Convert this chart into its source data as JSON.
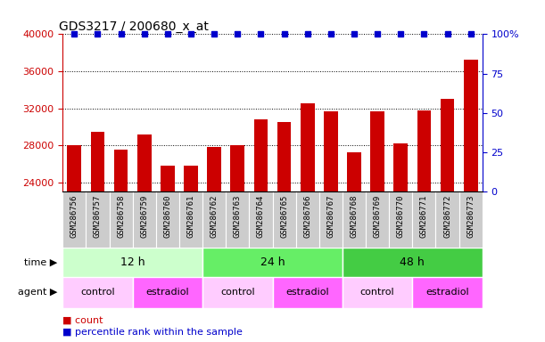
{
  "title": "GDS3217 / 200680_x_at",
  "samples": [
    "GSM286756",
    "GSM286757",
    "GSM286758",
    "GSM286759",
    "GSM286760",
    "GSM286761",
    "GSM286762",
    "GSM286763",
    "GSM286764",
    "GSM286765",
    "GSM286766",
    "GSM286767",
    "GSM286768",
    "GSM286769",
    "GSM286770",
    "GSM286771",
    "GSM286772",
    "GSM286773"
  ],
  "counts": [
    28000,
    29500,
    27500,
    29200,
    25800,
    25800,
    27800,
    28000,
    30800,
    30500,
    32500,
    31700,
    27200,
    31700,
    28200,
    31800,
    33000,
    37200
  ],
  "percentile_ranks": [
    100,
    100,
    100,
    100,
    100,
    100,
    100,
    100,
    100,
    100,
    100,
    100,
    100,
    100,
    100,
    100,
    100,
    100
  ],
  "bar_color": "#cc0000",
  "percentile_color": "#0000cc",
  "ylim_left": [
    23000,
    40000
  ],
  "ylim_right": [
    0,
    100
  ],
  "yticks_left": [
    24000,
    28000,
    32000,
    36000,
    40000
  ],
  "yticks_right": [
    0,
    25,
    50,
    75,
    100
  ],
  "time_groups": [
    {
      "label": "12 h",
      "start": 0,
      "end": 6,
      "color": "#ccffcc"
    },
    {
      "label": "24 h",
      "start": 6,
      "end": 12,
      "color": "#66ee66"
    },
    {
      "label": "48 h",
      "start": 12,
      "end": 18,
      "color": "#44cc44"
    }
  ],
  "agent_groups": [
    {
      "label": "control",
      "start": 0,
      "end": 3,
      "color": "#ffccff"
    },
    {
      "label": "estradiol",
      "start": 3,
      "end": 6,
      "color": "#ff66ff"
    },
    {
      "label": "control",
      "start": 6,
      "end": 9,
      "color": "#ffccff"
    },
    {
      "label": "estradiol",
      "start": 9,
      "end": 12,
      "color": "#ff66ff"
    },
    {
      "label": "control",
      "start": 12,
      "end": 15,
      "color": "#ffccff"
    },
    {
      "label": "estradiol",
      "start": 15,
      "end": 18,
      "color": "#ff66ff"
    }
  ],
  "legend_count_color": "#cc0000",
  "legend_percentile_color": "#0000cc",
  "tick_label_color_left": "#cc0000",
  "tick_label_color_right": "#0000cc",
  "xlabel_time": "time",
  "xlabel_agent": "agent",
  "xticklabel_bg": "#cccccc"
}
